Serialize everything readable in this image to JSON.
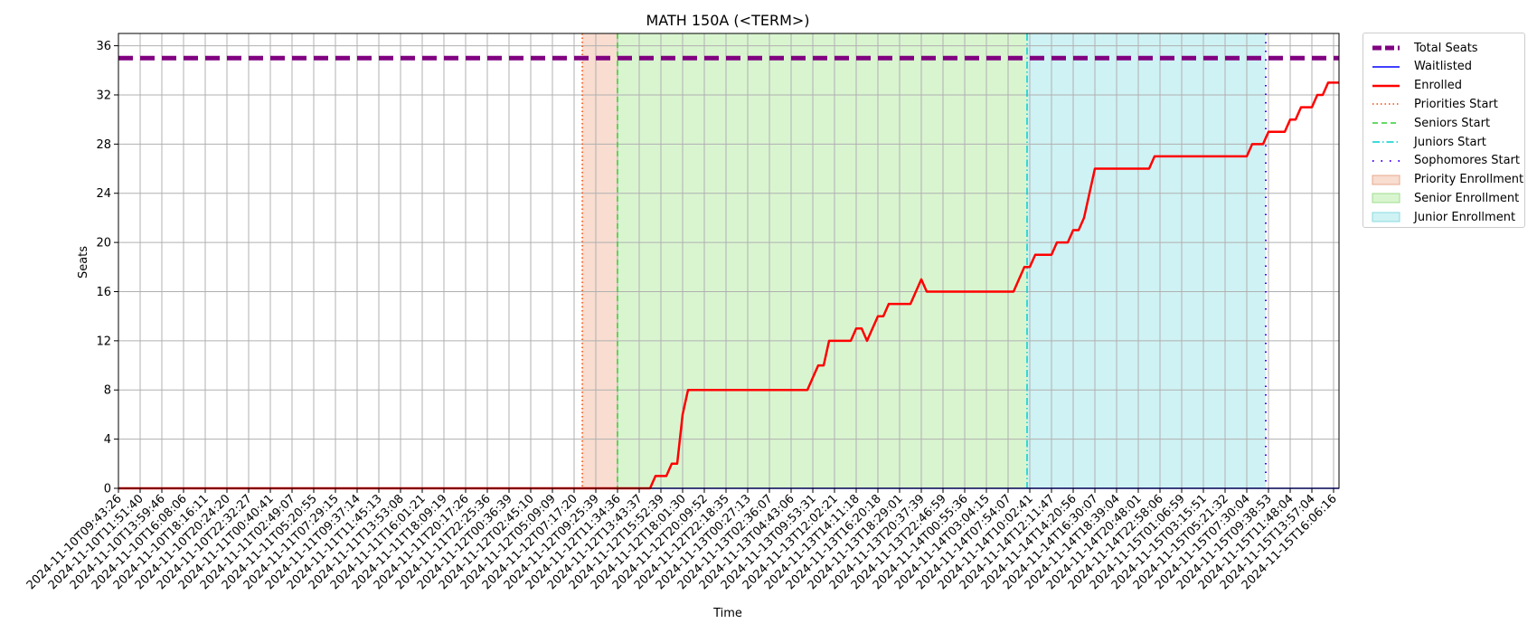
{
  "chart_data": {
    "type": "line",
    "title": "MATH 150A (<TERM>)",
    "xlabel": "Time",
    "ylabel": "Seats",
    "ylim": [
      0,
      37
    ],
    "yticks": [
      0,
      4,
      8,
      12,
      16,
      20,
      24,
      28,
      32,
      36
    ],
    "grid": true,
    "legend_position": "outside-right",
    "xticks": [
      "2024-11-10T09:43:26",
      "2024-11-10T11:51:40",
      "2024-11-10T13:59:46",
      "2024-11-10T16:08:06",
      "2024-11-10T18:16:11",
      "2024-11-10T20:24:20",
      "2024-11-10T22:32:27",
      "2024-11-11T00:40:41",
      "2024-11-11T02:49:07",
      "2024-11-11T05:20:55",
      "2024-11-11T07:29:15",
      "2024-11-11T09:37:14",
      "2024-11-11T11:45:13",
      "2024-11-11T13:53:08",
      "2024-11-11T16:01:21",
      "2024-11-11T18:09:19",
      "2024-11-11T20:17:26",
      "2024-11-11T22:25:36",
      "2024-11-12T00:36:39",
      "2024-11-12T02:45:10",
      "2024-11-12T05:09:09",
      "2024-11-12T07:17:20",
      "2024-11-12T09:25:39",
      "2024-11-12T11:34:36",
      "2024-11-12T13:43:37",
      "2024-11-12T15:52:39",
      "2024-11-12T18:01:30",
      "2024-11-12T20:09:52",
      "2024-11-12T22:18:35",
      "2024-11-13T00:27:13",
      "2024-11-13T02:36:07",
      "2024-11-13T04:43:06",
      "2024-11-13T09:53:31",
      "2024-11-13T12:02:21",
      "2024-11-13T14:11:18",
      "2024-11-13T16:20:18",
      "2024-11-13T18:29:01",
      "2024-11-13T20:37:39",
      "2024-11-13T22:46:59",
      "2024-11-14T00:55:36",
      "2024-11-14T03:04:15",
      "2024-11-14T07:54:07",
      "2024-11-14T10:02:41",
      "2024-11-14T12:11:47",
      "2024-11-14T14:20:56",
      "2024-11-14T16:30:07",
      "2024-11-14T18:39:04",
      "2024-11-14T20:48:01",
      "2024-11-14T22:58:06",
      "2024-11-15T01:06:59",
      "2024-11-15T03:15:51",
      "2024-11-15T05:21:32",
      "2024-11-15T07:30:04",
      "2024-11-15T09:38:53",
      "2024-11-15T11:48:04",
      "2024-11-15T13:57:04",
      "2024-11-15T16:06:16"
    ],
    "tick_step": 4,
    "x_end": 225,
    "total_seats": 35,
    "waitlisted": 0,
    "enrolled_points": [
      [
        0,
        0
      ],
      [
        98,
        0
      ],
      [
        99,
        1
      ],
      [
        101,
        1
      ],
      [
        102,
        2
      ],
      [
        103,
        2
      ],
      [
        104,
        6
      ],
      [
        105,
        8
      ],
      [
        127,
        8
      ],
      [
        128,
        9
      ],
      [
        129,
        10
      ],
      [
        130,
        10
      ],
      [
        131,
        12
      ],
      [
        135,
        12
      ],
      [
        136,
        13
      ],
      [
        137,
        13
      ],
      [
        138,
        12
      ],
      [
        139,
        13
      ],
      [
        140,
        14
      ],
      [
        141,
        14
      ],
      [
        142,
        15
      ],
      [
        146,
        15
      ],
      [
        147,
        16
      ],
      [
        148,
        17
      ],
      [
        149,
        16
      ],
      [
        165,
        16
      ],
      [
        166,
        17
      ],
      [
        167,
        18
      ],
      [
        168,
        18
      ],
      [
        169,
        19
      ],
      [
        172,
        19
      ],
      [
        173,
        20
      ],
      [
        175,
        20
      ],
      [
        176,
        21
      ],
      [
        177,
        21
      ],
      [
        178,
        22
      ],
      [
        179,
        24
      ],
      [
        180,
        26
      ],
      [
        190,
        26
      ],
      [
        191,
        27
      ],
      [
        208,
        27
      ],
      [
        209,
        28
      ],
      [
        211,
        28
      ],
      [
        212,
        29
      ],
      [
        215,
        29
      ],
      [
        216,
        30
      ],
      [
        217,
        30
      ],
      [
        218,
        31
      ],
      [
        220,
        31
      ],
      [
        221,
        32
      ],
      [
        222,
        32
      ],
      [
        223,
        33
      ],
      [
        225,
        33
      ]
    ],
    "phases": [
      {
        "name": "Priorities Start",
        "x": 85.5
      },
      {
        "name": "Seniors Start",
        "x": 92
      },
      {
        "name": "Juniors Start",
        "x": 167.5
      },
      {
        "name": "Sophomores Start",
        "x": 211.5
      }
    ],
    "spans": [
      {
        "name": "Priority Enrollment",
        "from": 85.5,
        "to": 92
      },
      {
        "name": "Senior Enrollment",
        "from": 92,
        "to": 167.5
      },
      {
        "name": "Junior Enrollment",
        "from": 167.5,
        "to": 211.5
      }
    ],
    "legend": [
      {
        "label": "Total Seats",
        "kind": "line",
        "color": "#800080",
        "style": "dashed",
        "width": 5
      },
      {
        "label": "Waitlisted",
        "kind": "line",
        "color": "#0000ff",
        "style": "solid",
        "width": 1.5
      },
      {
        "label": "Enrolled",
        "kind": "line",
        "color": "#ff0000",
        "style": "solid",
        "width": 2.5
      },
      {
        "label": "Priorities Start",
        "kind": "line",
        "color": "#ff4500",
        "style": "dotted",
        "width": 1.5
      },
      {
        "label": "Seniors Start",
        "kind": "line",
        "color": "#32cd32",
        "style": "dashed",
        "width": 1.5
      },
      {
        "label": "Juniors Start",
        "kind": "line",
        "color": "#00ced1",
        "style": "dashdot",
        "width": 1.5
      },
      {
        "label": "Sophomores Start",
        "kind": "line",
        "color": "#4b00ff",
        "style": "loosedot",
        "width": 2
      },
      {
        "label": "Priority Enrollment",
        "kind": "patch",
        "color": "#f8ddd0",
        "edge": "#e8a88c"
      },
      {
        "label": "Senior Enrollment",
        "kind": "patch",
        "color": "#d9f5d0",
        "edge": "#9edc8c"
      },
      {
        "label": "Junior Enrollment",
        "kind": "patch",
        "color": "#cff2f4",
        "edge": "#8adbe1"
      }
    ]
  }
}
